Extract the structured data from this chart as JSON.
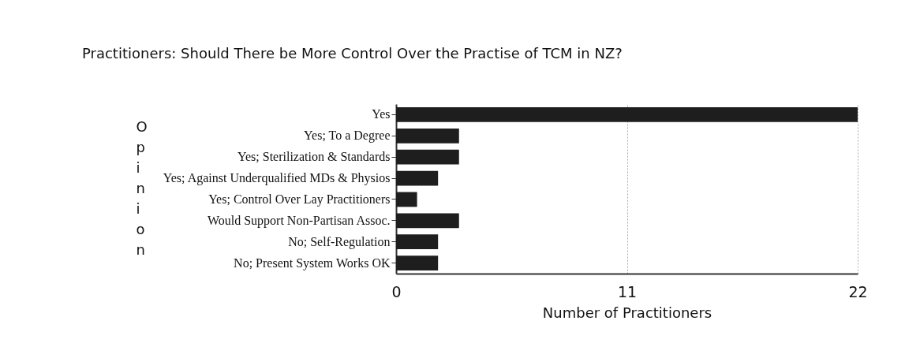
{
  "chart_data": {
    "type": "bar",
    "orientation": "horizontal",
    "title": "Practitioners: Should There be More Control Over the Practise of TCM in NZ?",
    "xlabel": "Number of Practitioners",
    "ylabel": "Opinion",
    "categories": [
      "Yes",
      "Yes; To a Degree",
      "Yes; Sterilization & Standards",
      "Yes; Against Underqualified MDs & Physios",
      "Yes; Control Over Lay Practitioners",
      "Would Support Non-Partisan Assoc.",
      "No; Self-Regulation",
      "No; Present System Works OK"
    ],
    "values": [
      22,
      3,
      3,
      2,
      1,
      3,
      2,
      2
    ],
    "color": "#1e1e1e",
    "xlim": [
      0,
      22
    ],
    "xticks": [
      0,
      11,
      22
    ],
    "grid": "x"
  }
}
